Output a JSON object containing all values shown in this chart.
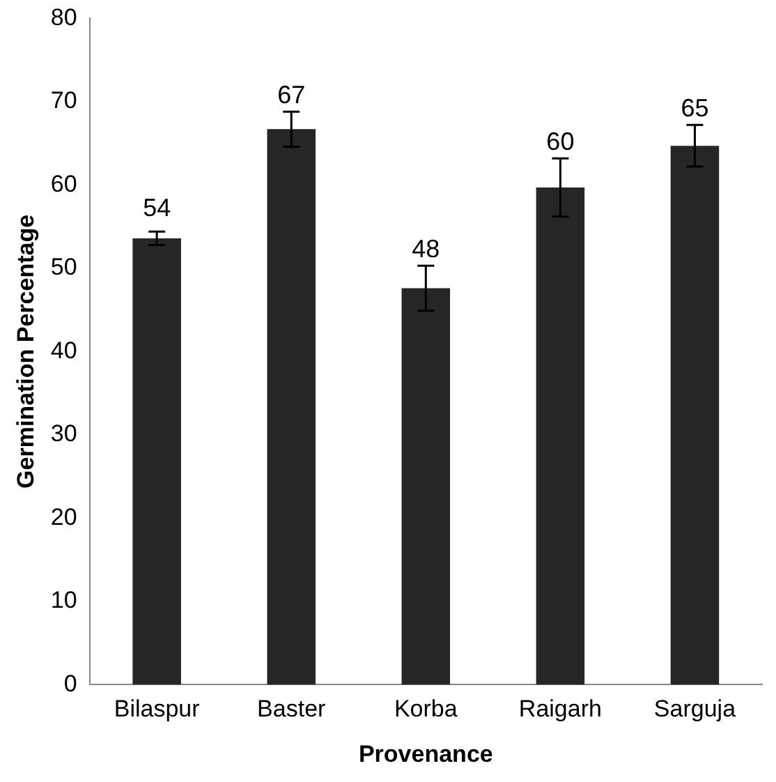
{
  "chart_data": {
    "type": "bar",
    "xlabel": "Provenance",
    "ylabel": "Germination Percentage",
    "categories": [
      "Bilaspur",
      "Baster",
      "Korba",
      "Raigarh",
      "Sarguja"
    ],
    "values": [
      53.6,
      66.7,
      47.6,
      59.7,
      64.7
    ],
    "errors": [
      0.8,
      2.1,
      2.7,
      3.5,
      2.5
    ],
    "value_labels": [
      "54",
      "67",
      "48",
      "60",
      "65"
    ],
    "color": "#262626",
    "ylim": [
      0,
      80
    ],
    "yticks": [
      0,
      10,
      20,
      30,
      40,
      50,
      60,
      70,
      80
    ],
    "grid": false,
    "legend": false
  }
}
